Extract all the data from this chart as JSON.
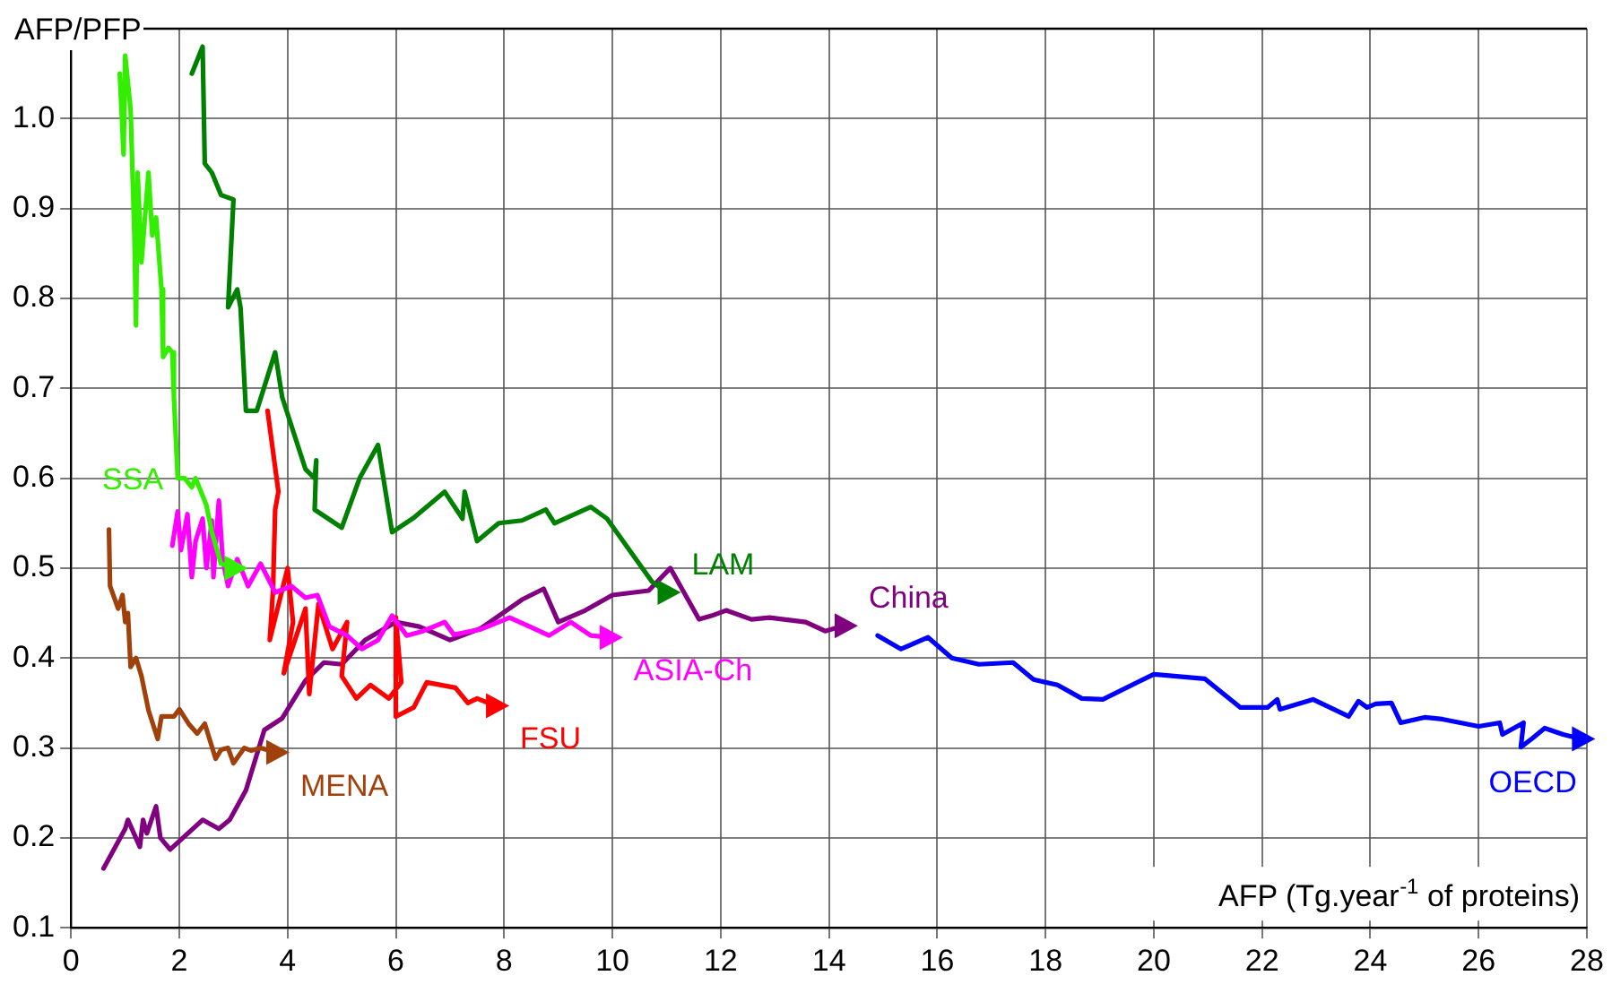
{
  "chart_data": {
    "type": "line",
    "xlabel": "AFP (Tg.year$^{-1}$ of proteins)",
    "ylabel": "AFP/PFP",
    "xlim": [
      0,
      28
    ],
    "xticks": [
      0,
      2,
      4,
      6,
      8,
      10,
      12,
      14,
      16,
      18,
      20,
      22,
      24,
      26,
      28
    ],
    "ylim": [
      0.1,
      1.1
    ],
    "yticks": [
      0.1,
      0.2,
      0.3,
      0.4,
      0.5,
      0.6,
      0.7,
      0.8,
      0.9,
      {
        "value": 1,
        "label": "1.0"
      }
    ],
    "grid": true,
    "legend": false,
    "line_style": "solid",
    "series": [
      {
        "name": "SSA",
        "color": "#33ee00",
        "x": [
          0.9,
          0.97,
          1.0,
          1.1,
          1.17,
          1.2,
          1.23,
          1.3,
          1.43,
          1.5,
          1.57,
          1.67,
          1.7,
          1.8,
          1.87,
          1.9,
          1.97,
          2.1,
          2.23,
          2.3,
          2.5,
          2.6,
          2.77,
          3.0
        ],
        "values": [
          1.05,
          0.96,
          1.07,
          1.01,
          0.87,
          0.77,
          0.94,
          0.84,
          0.94,
          0.87,
          0.89,
          0.81,
          0.735,
          0.745,
          0.74,
          0.69,
          0.6,
          0.6,
          0.59,
          0.6,
          0.57,
          0.54,
          0.505,
          0.5
        ]
      },
      {
        "name": "LAM",
        "color": "#008000",
        "x": [
          2.23,
          2.43,
          2.47,
          2.6,
          2.77,
          3.0,
          2.9,
          3.07,
          3.13,
          3.23,
          3.43,
          3.77,
          3.9,
          4.33,
          4.5,
          4.53,
          4.5,
          5.0,
          5.33,
          5.67,
          5.93,
          6.33,
          6.9,
          7.23,
          7.27,
          7.5,
          7.9,
          8.33,
          8.77,
          8.93,
          9.6,
          9.9,
          10.73,
          11.0
        ],
        "values": [
          1.05,
          1.08,
          0.95,
          0.94,
          0.915,
          0.91,
          0.79,
          0.81,
          0.79,
          0.675,
          0.675,
          0.74,
          0.69,
          0.61,
          0.6,
          0.62,
          0.565,
          0.545,
          0.6,
          0.637,
          0.54,
          0.556,
          0.585,
          0.555,
          0.585,
          0.53,
          0.55,
          0.553,
          0.565,
          0.55,
          0.568,
          0.555,
          0.485,
          0.473
        ]
      },
      {
        "name": "MENA",
        "color": "#a0400a",
        "x": [
          0.7,
          0.72,
          0.87,
          0.95,
          1.0,
          1.05,
          1.1,
          1.2,
          1.3,
          1.43,
          1.6,
          1.67,
          1.9,
          2.0,
          2.17,
          2.33,
          2.47,
          2.67,
          2.77,
          2.9,
          3.0,
          3.2,
          3.33,
          3.5,
          3.77
        ],
        "values": [
          0.543,
          0.48,
          0.455,
          0.47,
          0.44,
          0.45,
          0.39,
          0.4,
          0.38,
          0.342,
          0.31,
          0.335,
          0.335,
          0.343,
          0.327,
          0.316,
          0.327,
          0.288,
          0.298,
          0.3,
          0.283,
          0.3,
          0.297,
          0.3,
          0.295
        ]
      },
      {
        "name": "ASIA-Ch",
        "color": "#ff00ff",
        "x": [
          1.87,
          1.97,
          2.03,
          2.15,
          2.23,
          2.3,
          2.43,
          2.5,
          2.6,
          2.63,
          2.73,
          2.8,
          2.9,
          3.07,
          3.27,
          3.5,
          3.77,
          4.07,
          4.33,
          4.55,
          4.77,
          5.1,
          5.37,
          5.67,
          5.93,
          6.2,
          6.5,
          6.9,
          7.07,
          7.57,
          7.9,
          8.1,
          8.47,
          8.83,
          9.23,
          9.6,
          9.93
        ],
        "values": [
          0.525,
          0.563,
          0.52,
          0.56,
          0.49,
          0.53,
          0.555,
          0.5,
          0.553,
          0.49,
          0.575,
          0.51,
          0.48,
          0.51,
          0.48,
          0.505,
          0.473,
          0.48,
          0.467,
          0.47,
          0.435,
          0.425,
          0.41,
          0.42,
          0.447,
          0.425,
          0.43,
          0.44,
          0.426,
          0.432,
          0.44,
          0.445,
          0.435,
          0.425,
          0.44,
          0.425,
          0.423
        ]
      },
      {
        "name": "FSU",
        "color": "#ff0000",
        "x": [
          3.63,
          3.83,
          3.77,
          3.73,
          3.67,
          4.0,
          4.1,
          3.93,
          4.33,
          4.4,
          4.57,
          4.83,
          5.1,
          5.0,
          5.27,
          5.53,
          5.87,
          6.1,
          6.0,
          6.0,
          6.33,
          6.57,
          7.1,
          7.33,
          7.5,
          7.83
        ],
        "values": [
          0.675,
          0.585,
          0.565,
          0.475,
          0.42,
          0.5,
          0.44,
          0.383,
          0.455,
          0.36,
          0.46,
          0.41,
          0.44,
          0.38,
          0.355,
          0.37,
          0.355,
          0.373,
          0.445,
          0.335,
          0.345,
          0.373,
          0.367,
          0.35,
          0.355,
          0.347
        ]
      },
      {
        "name": "China",
        "color": "#800080",
        "x": [
          0.6,
          1.0,
          1.05,
          1.27,
          1.33,
          1.4,
          1.57,
          1.65,
          1.83,
          2.43,
          2.73,
          2.93,
          3.23,
          3.57,
          3.9,
          4.33,
          4.67,
          5.0,
          5.43,
          6.0,
          6.43,
          7.0,
          7.57,
          8.33,
          8.73,
          9.0,
          9.5,
          10.0,
          10.67,
          11.07,
          11.6,
          11.83,
          12.1,
          12.57,
          12.9,
          13.57,
          13.93,
          14.27
        ],
        "values": [
          0.166,
          0.21,
          0.22,
          0.19,
          0.22,
          0.205,
          0.235,
          0.2,
          0.187,
          0.22,
          0.21,
          0.22,
          0.253,
          0.32,
          0.333,
          0.375,
          0.395,
          0.393,
          0.42,
          0.44,
          0.435,
          0.42,
          0.433,
          0.465,
          0.477,
          0.44,
          0.453,
          0.47,
          0.475,
          0.5,
          0.443,
          0.447,
          0.453,
          0.443,
          0.445,
          0.44,
          0.43,
          0.436
        ]
      },
      {
        "name": "OECD",
        "color": "#0000ff",
        "x": [
          14.9,
          15.33,
          15.83,
          16.27,
          16.77,
          17.4,
          17.78,
          18.22,
          18.67,
          19.06,
          20.0,
          20.94,
          21.6,
          22.1,
          22.28,
          22.33,
          22.94,
          23.6,
          23.78,
          23.94,
          24.1,
          24.39,
          24.56,
          25.0,
          25.33,
          26.0,
          26.39,
          26.44,
          26.83,
          26.78,
          27.0,
          27.22,
          27.56,
          27.89
        ],
        "values": [
          0.425,
          0.41,
          0.423,
          0.4,
          0.393,
          0.395,
          0.376,
          0.37,
          0.355,
          0.354,
          0.382,
          0.377,
          0.345,
          0.345,
          0.354,
          0.343,
          0.354,
          0.335,
          0.352,
          0.345,
          0.349,
          0.35,
          0.328,
          0.334,
          0.332,
          0.324,
          0.328,
          0.315,
          0.328,
          0.301,
          0.311,
          0.322,
          0.315,
          0.31
        ]
      }
    ]
  }
}
